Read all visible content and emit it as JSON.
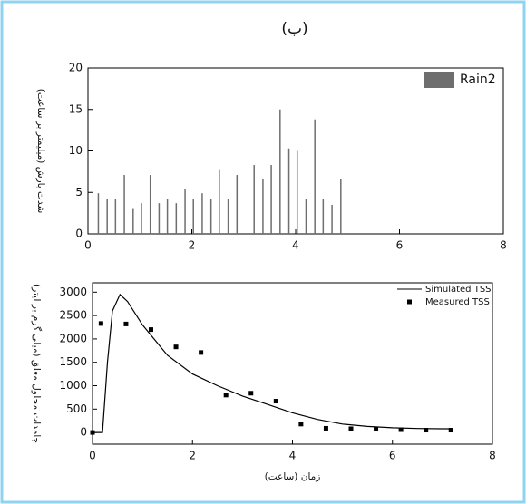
{
  "title": "(ب)",
  "chart_data": [
    {
      "type": "bar",
      "y_label": "شدت بارش (میلیمتر بر ساعت)",
      "legend": "upper right",
      "series": [
        {
          "name": "Rain2",
          "color": "#6e6e6e",
          "x": [
            0.2,
            0.37,
            0.53,
            0.7,
            0.87,
            1.03,
            1.2,
            1.37,
            1.53,
            1.7,
            1.87,
            2.03,
            2.2,
            2.37,
            2.53,
            2.7,
            2.87,
            3.03,
            3.2,
            3.37,
            3.53,
            3.7,
            3.87,
            4.03,
            4.2,
            4.37,
            4.53,
            4.7,
            4.87
          ],
          "values": [
            4.9,
            4.2,
            4.2,
            7.1,
            3.0,
            3.7,
            7.1,
            3.7,
            4.2,
            3.7,
            5.4,
            4.2,
            4.9,
            4.2,
            7.8,
            4.2,
            7.1,
            0,
            8.3,
            6.6,
            8.3,
            15,
            10.3,
            10,
            4.2,
            13.8,
            4.2,
            3.5,
            6.6
          ]
        }
      ],
      "xlim": [
        0,
        8
      ],
      "xticks": [
        0,
        2,
        4,
        6,
        8
      ],
      "ylim": [
        0,
        20
      ],
      "yticks": [
        0,
        5,
        10,
        15,
        20
      ]
    },
    {
      "type": "line",
      "x_label": "زمان (ساعت)",
      "y_label": "جامدات محلول معلق (میلی گرم بر لیتر)",
      "legend": "upper right",
      "series": [
        {
          "name": "Simulated TSS",
          "style": "line",
          "color": "#000000",
          "x": [
            0,
            0.2,
            0.3,
            0.4,
            0.55,
            0.7,
            1.0,
            1.5,
            2.0,
            2.5,
            3.0,
            3.5,
            4.0,
            4.5,
            5.0,
            5.5,
            6.0,
            6.5,
            7.0,
            7.17
          ],
          "values": [
            0,
            0,
            1500,
            2600,
            2950,
            2800,
            2300,
            1650,
            1250,
            1000,
            780,
            600,
            420,
            280,
            180,
            130,
            100,
            85,
            80,
            80
          ]
        },
        {
          "name": "Measured TSS",
          "style": "markers",
          "color": "#000000",
          "x": [
            0,
            0.17,
            0.67,
            1.17,
            1.67,
            2.17,
            2.67,
            3.17,
            3.67,
            4.17,
            4.67,
            5.17,
            5.67,
            6.17,
            6.67,
            7.17
          ],
          "values": [
            0,
            2330,
            2320,
            2200,
            1830,
            1710,
            800,
            840,
            670,
            180,
            90,
            80,
            70,
            60,
            50,
            50
          ]
        }
      ],
      "xlim": [
        0,
        8
      ],
      "xticks": [
        0,
        2,
        4,
        6,
        8
      ],
      "ylim": [
        -250,
        3200
      ],
      "yticks": [
        0,
        500,
        1000,
        1500,
        2000,
        2500,
        3000
      ]
    }
  ]
}
